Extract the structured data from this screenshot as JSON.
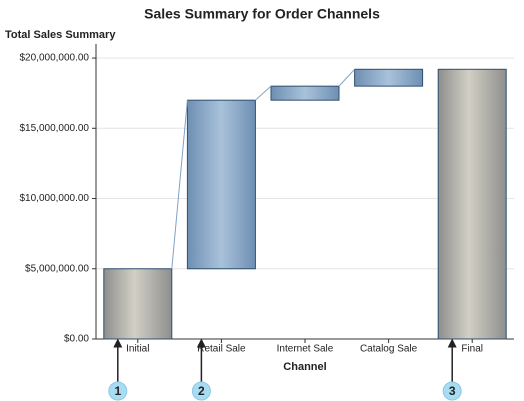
{
  "chart_data": {
    "type": "waterfall",
    "title": "Sales Summary for Order Channels",
    "y_label": "Total Sales Summary",
    "x_label": "Channel",
    "categories": [
      "Initial",
      "Retail Sale",
      "Internet Sale",
      "Catalog Sale",
      "Final"
    ],
    "values": [
      5000000,
      12000000,
      1000000,
      1200000,
      19200000
    ],
    "kinds": [
      "total",
      "delta",
      "delta",
      "delta",
      "total"
    ],
    "total_color": "#d2d0c4",
    "delta_color": "#a9c2da",
    "ylim": [
      0,
      21000000
    ],
    "yticks": [
      {
        "value": 0,
        "label": "$0.00"
      },
      {
        "value": 5000000,
        "label": "$5,000,000.00"
      },
      {
        "value": 10000000,
        "label": "$10,000,000.00"
      },
      {
        "value": 15000000,
        "label": "$15,000,000.00"
      },
      {
        "value": 20000000,
        "label": "$20,000,000.00"
      }
    ],
    "grid": true,
    "annotations": [
      {
        "label": "1",
        "category": "Initial"
      },
      {
        "label": "2",
        "category": "Retail Sale"
      },
      {
        "label": "3",
        "category": "Final"
      }
    ]
  }
}
